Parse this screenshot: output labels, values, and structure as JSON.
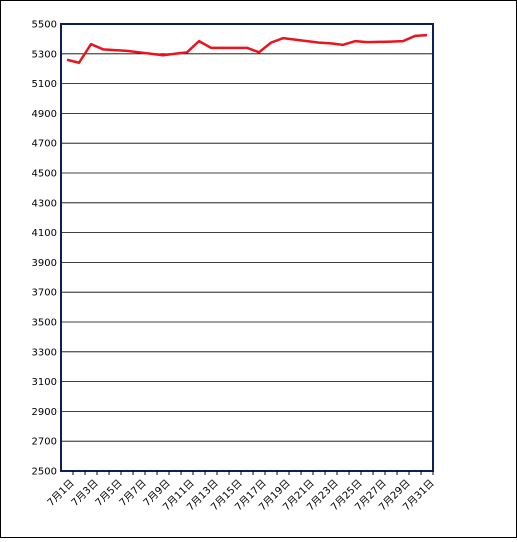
{
  "chart_data": {
    "type": "line",
    "categories": [
      "7月1日",
      null,
      "7月3日",
      null,
      "7月5日",
      null,
      "7月7日",
      null,
      "7月9日",
      null,
      "7月11日",
      null,
      "7月13日",
      null,
      "7月15日",
      null,
      "7月17日",
      null,
      "7月19日",
      null,
      "7月21日",
      null,
      "7月23日",
      null,
      "7月25日",
      null,
      "7月27日",
      null,
      "7月29日",
      null,
      "7月31日"
    ],
    "series": [
      {
        "color": "#e8141e",
        "values": [
          5260,
          5240,
          5365,
          5330,
          5325,
          5320,
          5310,
          5300,
          5290,
          5300,
          5310,
          5385,
          5340,
          5340,
          5340,
          5340,
          5310,
          5375,
          5405,
          5395,
          5385,
          5375,
          5370,
          5360,
          5385,
          5378,
          5380,
          5382,
          5385,
          5420,
          5425
        ]
      }
    ],
    "ylim": [
      2500,
      5500
    ],
    "yticks": [
      2500,
      2700,
      2900,
      3100,
      3300,
      3500,
      3700,
      3900,
      4100,
      4300,
      4500,
      4700,
      4900,
      5100,
      5300,
      5500
    ],
    "grid": true
  }
}
